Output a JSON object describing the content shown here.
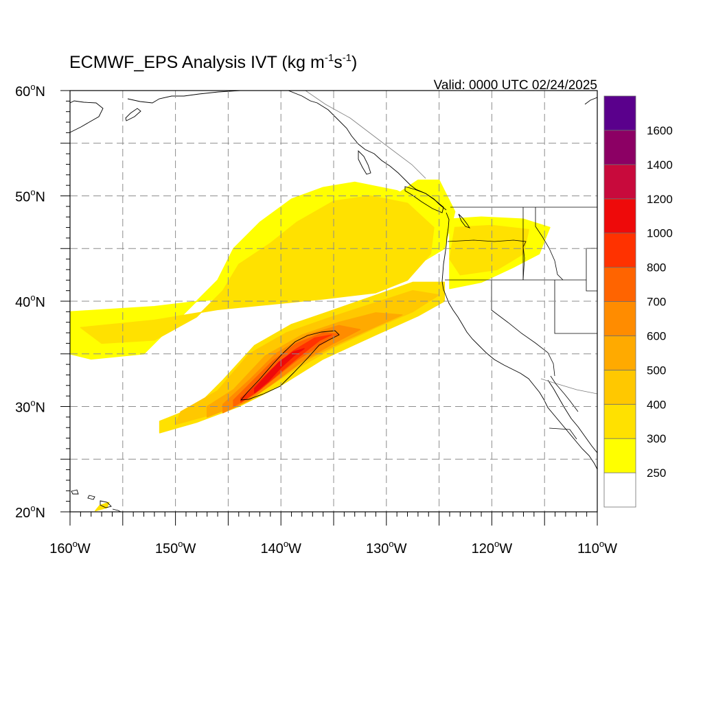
{
  "title": {
    "prefix": "ECMWF_EPS Analysis IVT (kg m",
    "sup1": "-1",
    "mid": "s",
    "sup2": "-1",
    "suffix": ")"
  },
  "valid_time": "Valid: 0000 UTC 02/24/2025",
  "map": {
    "lon_range": [
      -160,
      -110
    ],
    "lat_range": [
      20,
      60
    ],
    "lon_ticks": [
      {
        "value": -160,
        "num": "160",
        "hemi": "W"
      },
      {
        "value": -150,
        "num": "150",
        "hemi": "W"
      },
      {
        "value": -140,
        "num": "140",
        "hemi": "W"
      },
      {
        "value": -130,
        "num": "130",
        "hemi": "W"
      },
      {
        "value": -120,
        "num": "120",
        "hemi": "W"
      },
      {
        "value": -110,
        "num": "110",
        "hemi": "W"
      }
    ],
    "lat_ticks": [
      {
        "value": 60,
        "num": "60",
        "hemi": "N"
      },
      {
        "value": 50,
        "num": "50",
        "hemi": "N"
      },
      {
        "value": 40,
        "num": "40",
        "hemi": "N"
      },
      {
        "value": 30,
        "num": "30",
        "hemi": "N"
      },
      {
        "value": 20,
        "num": "20",
        "hemi": "N"
      }
    ],
    "degree_symbol": "o"
  },
  "colorbar": {
    "colors": [
      "#ffffff",
      "#ffff00",
      "#ffe100",
      "#ffc800",
      "#ffaa00",
      "#ff8c00",
      "#ff6400",
      "#ff3200",
      "#ee0a0a",
      "#c80a3c",
      "#8c0064",
      "#5a008c"
    ],
    "labels": [
      "250",
      "300",
      "400",
      "500",
      "600",
      "700",
      "800",
      "1000",
      "1200",
      "1400",
      "1600"
    ]
  },
  "ivt_field": {
    "units": "kg m-1 s-1",
    "contour_level": 1000,
    "regions": [
      {
        "name": "main-plume-250",
        "color": "#ffff00",
        "points": [
          [
            -160,
            39
          ],
          [
            -152,
            39.5
          ],
          [
            -146,
            40.2
          ],
          [
            -143,
            40.5
          ],
          [
            -139,
            40.8
          ],
          [
            -134,
            41.2
          ],
          [
            -130,
            41.8
          ],
          [
            -127,
            43.5
          ],
          [
            -124.5,
            45
          ],
          [
            -124,
            47
          ],
          [
            -125,
            48.5
          ],
          [
            -129,
            50.5
          ],
          [
            -133,
            51.3
          ],
          [
            -136,
            50.8
          ],
          [
            -139,
            49.7
          ],
          [
            -142,
            47.5
          ],
          [
            -144.5,
            45
          ],
          [
            -146,
            42
          ],
          [
            -150,
            38
          ],
          [
            -153,
            35
          ],
          [
            -158,
            34.5
          ],
          [
            -160,
            35
          ]
        ]
      },
      {
        "name": "north-arc-250",
        "color": "#ffff00",
        "points": [
          [
            -144,
            43
          ],
          [
            -142,
            46
          ],
          [
            -138,
            47.5
          ],
          [
            -134,
            48.5
          ],
          [
            -130,
            49.5
          ],
          [
            -127,
            51.5
          ],
          [
            -125,
            51.5
          ],
          [
            -123.5,
            48.5
          ],
          [
            -124,
            46.5
          ],
          [
            -126,
            45.8
          ],
          [
            -128,
            44.5
          ],
          [
            -131,
            43.8
          ],
          [
            -135,
            43
          ],
          [
            -139,
            42.4
          ]
        ]
      },
      {
        "name": "interior-250",
        "color": "#ffff00",
        "points": [
          [
            -124,
            47.8
          ],
          [
            -121,
            48
          ],
          [
            -117,
            47.8
          ],
          [
            -114.5,
            47
          ],
          [
            -115.5,
            44.5
          ],
          [
            -118,
            43.2
          ],
          [
            -121,
            41.8
          ],
          [
            -124,
            41.2
          ]
        ]
      },
      {
        "name": "main-plume-300",
        "color": "#ffe100",
        "points": [
          [
            -159,
            37.5
          ],
          [
            -152,
            38.2
          ],
          [
            -146,
            39.2
          ],
          [
            -141,
            39.7
          ],
          [
            -136,
            40.2
          ],
          [
            -131,
            40.8
          ],
          [
            -128,
            42
          ],
          [
            -125.8,
            44.5
          ],
          [
            -125.5,
            47
          ],
          [
            -128,
            49.3
          ],
          [
            -131.5,
            50
          ],
          [
            -135,
            49.5
          ],
          [
            -138.5,
            47.5
          ],
          [
            -141,
            45.5
          ],
          [
            -144,
            43.5
          ],
          [
            -145.5,
            41
          ],
          [
            -148,
            38.5
          ],
          [
            -152,
            36.3
          ],
          [
            -157,
            36
          ]
        ]
      },
      {
        "name": "interior-300",
        "color": "#ffe100",
        "points": [
          [
            -123.5,
            47
          ],
          [
            -120,
            47.2
          ],
          [
            -116.5,
            46.8
          ],
          [
            -117,
            44.5
          ],
          [
            -119.5,
            43
          ],
          [
            -123,
            42.5
          ],
          [
            -124,
            44
          ]
        ]
      },
      {
        "name": "ar-core-300",
        "color": "#ffe100",
        "points": [
          [
            -151.5,
            27.5
          ],
          [
            -148,
            28.5
          ],
          [
            -144,
            30
          ],
          [
            -140,
            32
          ],
          [
            -136,
            34.5
          ],
          [
            -131,
            36.8
          ],
          [
            -127,
            38.6
          ],
          [
            -124.5,
            40
          ],
          [
            -124.5,
            41.8
          ],
          [
            -127.5,
            41.8
          ],
          [
            -131.5,
            40.4
          ],
          [
            -135.5,
            39
          ],
          [
            -139,
            37.8
          ],
          [
            -142.5,
            35.8
          ],
          [
            -145.5,
            32.5
          ],
          [
            -148,
            30
          ],
          [
            -151.5,
            28.6
          ]
        ]
      },
      {
        "name": "ar-core-400",
        "color": "#ffc800",
        "points": [
          [
            -150,
            28.3
          ],
          [
            -146,
            29.4
          ],
          [
            -142.5,
            31
          ],
          [
            -139,
            33.3
          ],
          [
            -135,
            35.6
          ],
          [
            -131,
            37.5
          ],
          [
            -127.5,
            39
          ],
          [
            -125,
            40.6
          ],
          [
            -127.5,
            41
          ],
          [
            -131.5,
            39.7
          ],
          [
            -135.5,
            38.4
          ],
          [
            -139.5,
            37
          ],
          [
            -143,
            35
          ],
          [
            -146,
            31.5
          ],
          [
            -149.5,
            29.5
          ]
        ]
      },
      {
        "name": "ar-core-500",
        "color": "#ffaa00",
        "points": [
          [
            -147,
            29
          ],
          [
            -144,
            30.2
          ],
          [
            -141,
            32
          ],
          [
            -138,
            34.2
          ],
          [
            -134.5,
            36
          ],
          [
            -131,
            37.6
          ],
          [
            -128.5,
            38.7
          ],
          [
            -131,
            38.9
          ],
          [
            -134.5,
            38
          ],
          [
            -138,
            36.8
          ],
          [
            -141.5,
            34.8
          ],
          [
            -144.5,
            31.6
          ],
          [
            -147,
            30
          ]
        ]
      },
      {
        "name": "ar-core-600",
        "color": "#ff8c00",
        "points": [
          [
            -145.5,
            29.4
          ],
          [
            -143,
            30.6
          ],
          [
            -140.5,
            32.4
          ],
          [
            -138,
            34.3
          ],
          [
            -135,
            36
          ],
          [
            -132.5,
            37.3
          ],
          [
            -134.5,
            37.7
          ],
          [
            -137.5,
            36.8
          ],
          [
            -140.5,
            35
          ],
          [
            -143,
            32.5
          ],
          [
            -145.5,
            30.2
          ]
        ]
      },
      {
        "name": "ar-core-700",
        "color": "#ff6400",
        "points": [
          [
            -144.5,
            30
          ],
          [
            -142.5,
            31.2
          ],
          [
            -140.5,
            32.8
          ],
          [
            -138.5,
            34.4
          ],
          [
            -136,
            36
          ],
          [
            -134.5,
            36.9
          ],
          [
            -136,
            37
          ],
          [
            -138.5,
            36
          ],
          [
            -140.8,
            34.3
          ],
          [
            -142.8,
            32.3
          ],
          [
            -144.5,
            30.6
          ]
        ]
      },
      {
        "name": "ar-core-800",
        "color": "#ff3200",
        "points": [
          [
            -143.8,
            30.4
          ],
          [
            -142,
            31.6
          ],
          [
            -140,
            33.3
          ],
          [
            -138.2,
            34.8
          ],
          [
            -136.3,
            36.3
          ],
          [
            -135.2,
            36.8
          ],
          [
            -136.8,
            36.5
          ],
          [
            -138.8,
            35.3
          ],
          [
            -140.8,
            33.6
          ],
          [
            -142.8,
            31.6
          ],
          [
            -143.8,
            30.8
          ]
        ]
      },
      {
        "name": "ar-core-1000",
        "color": "#ee0a0a",
        "points": [
          [
            -142.5,
            31.3
          ],
          [
            -141.2,
            32.4
          ],
          [
            -140,
            33.7
          ],
          [
            -138.8,
            34.8
          ],
          [
            -137.8,
            35.5
          ],
          [
            -138.8,
            35.2
          ],
          [
            -140.2,
            34.2
          ],
          [
            -141.6,
            32.7
          ],
          [
            -142.5,
            31.7
          ]
        ]
      },
      {
        "name": "hawaii-250",
        "color": "#ffe100",
        "points": [
          [
            -157.6,
            20.1
          ],
          [
            -156.5,
            20.4
          ],
          [
            -156.3,
            20.9
          ],
          [
            -157.2,
            20.6
          ]
        ]
      }
    ]
  }
}
